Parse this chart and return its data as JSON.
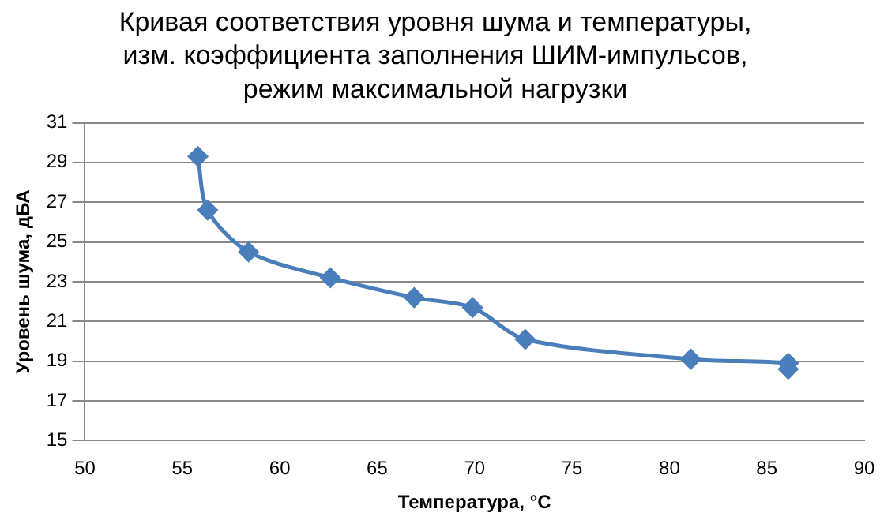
{
  "chart_data": {
    "type": "line",
    "title": "Кривая соответствия уровня шума и температуры,\nизм. коэффициента заполнения ШИМ-импульсов,\nрежим максимальной нагрузки",
    "xlabel": "Температура, °C",
    "ylabel": "Уровень шума, дБА",
    "x": [
      55.8,
      56.3,
      58.4,
      62.6,
      66.9,
      69.9,
      72.6,
      81.1,
      86.1,
      86.1
    ],
    "series": [
      {
        "color": "#4a7ebb",
        "values": [
          29.3,
          26.6,
          24.5,
          23.2,
          22.2,
          21.7,
          20.1,
          19.1,
          18.9,
          18.6
        ]
      }
    ],
    "xlim": [
      50,
      90
    ],
    "xticks": [
      50,
      55,
      60,
      65,
      70,
      75,
      80,
      85,
      90
    ],
    "ylim": [
      15,
      31
    ],
    "yticks": [
      15,
      17,
      19,
      21,
      23,
      25,
      27,
      29,
      31
    ],
    "grid": "y",
    "legend": false,
    "marker": "diamond",
    "line_style": "solid"
  }
}
